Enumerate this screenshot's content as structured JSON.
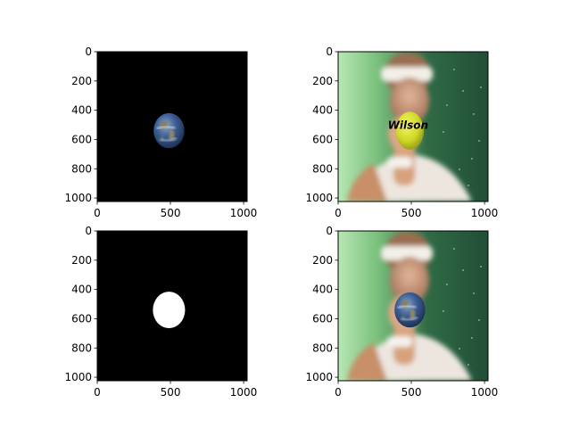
{
  "chart_data": [
    {
      "type": "image",
      "panel": "top-left",
      "content": "earth on black background",
      "xlim": [
        0,
        1024
      ],
      "ylim": [
        1024,
        0
      ],
      "xticks": [
        0,
        500,
        1000
      ],
      "yticks": [
        0,
        200,
        400,
        600,
        800,
        1000
      ],
      "objects": [
        {
          "kind": "earth",
          "cx": 490,
          "cy": 540,
          "rx": 105,
          "ry": 120
        }
      ]
    },
    {
      "type": "image",
      "panel": "top-right",
      "content": "hand holding a tennis ball in front of a face, green background",
      "xlim": [
        0,
        1024
      ],
      "ylim": [
        1024,
        0
      ],
      "xticks": [
        0,
        500,
        1000
      ],
      "yticks": [
        0,
        200,
        400,
        600,
        800,
        1000
      ],
      "objects": [
        {
          "kind": "tennis-ball",
          "cx": 490,
          "cy": 540,
          "rx": 95,
          "ry": 130,
          "label": "Wilson"
        }
      ]
    },
    {
      "type": "image",
      "panel": "bottom-left",
      "content": "white circular mask on black background",
      "xlim": [
        0,
        1024
      ],
      "ylim": [
        1024,
        0
      ],
      "xticks": [
        0,
        500,
        1000
      ],
      "yticks": [
        0,
        200,
        400,
        600,
        800,
        1000
      ],
      "objects": [
        {
          "kind": "mask",
          "cx": 490,
          "cy": 540,
          "rx": 110,
          "ry": 125
        }
      ]
    },
    {
      "type": "image",
      "panel": "bottom-right",
      "content": "hand holding the earth in front of a face, green background",
      "xlim": [
        0,
        1024
      ],
      "ylim": [
        1024,
        0
      ],
      "xticks": [
        0,
        500,
        1000
      ],
      "yticks": [
        0,
        200,
        400,
        600,
        800,
        1000
      ],
      "objects": [
        {
          "kind": "earth",
          "cx": 490,
          "cy": 540,
          "rx": 105,
          "ry": 120
        }
      ]
    }
  ],
  "colors": {
    "background": "#000000",
    "mask": "#ffffff",
    "green_backdrop": "#3f7a4e",
    "skin": "#c99a7a",
    "ball": "#d8e02a",
    "ocean": "#2b4f86"
  }
}
